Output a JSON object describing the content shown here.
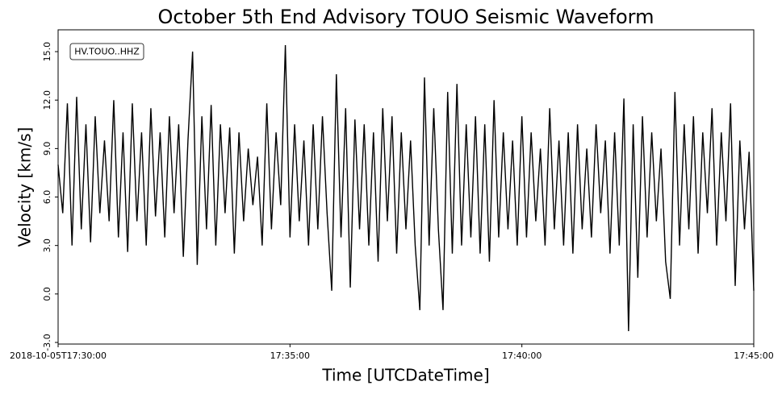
{
  "chart_data": {
    "type": "line",
    "title": "October 5th End Advisory TOUO Seismic Waveform",
    "xlabel": "Time [UTCDateTime]",
    "ylabel": "Velocity [km/s]",
    "x": [
      "2018-10-05T17:30:00",
      "2018-10-05T17:30:06",
      "2018-10-05T17:30:12",
      "2018-10-05T17:30:18",
      "2018-10-05T17:30:24",
      "2018-10-05T17:30:30",
      "2018-10-05T17:30:36",
      "2018-10-05T17:30:42",
      "2018-10-05T17:30:48",
      "2018-10-05T17:30:54",
      "2018-10-05T17:31:00",
      "2018-10-05T17:31:06",
      "2018-10-05T17:31:12",
      "2018-10-05T17:31:18",
      "2018-10-05T17:31:24",
      "2018-10-05T17:31:30",
      "2018-10-05T17:31:36",
      "2018-10-05T17:31:42",
      "2018-10-05T17:31:48",
      "2018-10-05T17:31:54",
      "2018-10-05T17:32:00",
      "2018-10-05T17:32:06",
      "2018-10-05T17:32:12",
      "2018-10-05T17:32:18",
      "2018-10-05T17:32:24",
      "2018-10-05T17:32:30",
      "2018-10-05T17:32:36",
      "2018-10-05T17:32:42",
      "2018-10-05T17:32:48",
      "2018-10-05T17:32:54",
      "2018-10-05T17:33:00",
      "2018-10-05T17:33:06",
      "2018-10-05T17:33:12",
      "2018-10-05T17:33:18",
      "2018-10-05T17:33:24",
      "2018-10-05T17:33:30",
      "2018-10-05T17:33:36",
      "2018-10-05T17:33:42",
      "2018-10-05T17:33:48",
      "2018-10-05T17:33:54",
      "2018-10-05T17:34:00",
      "2018-10-05T17:34:06",
      "2018-10-05T17:34:12",
      "2018-10-05T17:34:18",
      "2018-10-05T17:34:24",
      "2018-10-05T17:34:30",
      "2018-10-05T17:34:36",
      "2018-10-05T17:34:42",
      "2018-10-05T17:34:48",
      "2018-10-05T17:34:54",
      "2018-10-05T17:35:00",
      "2018-10-05T17:35:06",
      "2018-10-05T17:35:12",
      "2018-10-05T17:35:18",
      "2018-10-05T17:35:24",
      "2018-10-05T17:35:30",
      "2018-10-05T17:35:36",
      "2018-10-05T17:35:42",
      "2018-10-05T17:35:48",
      "2018-10-05T17:35:54",
      "2018-10-05T17:36:00",
      "2018-10-05T17:36:06",
      "2018-10-05T17:36:12",
      "2018-10-05T17:36:18",
      "2018-10-05T17:36:24",
      "2018-10-05T17:36:30",
      "2018-10-05T17:36:36",
      "2018-10-05T17:36:42",
      "2018-10-05T17:36:48",
      "2018-10-05T17:36:54",
      "2018-10-05T17:37:00",
      "2018-10-05T17:37:06",
      "2018-10-05T17:37:12",
      "2018-10-05T17:37:18",
      "2018-10-05T17:37:24",
      "2018-10-05T17:37:30",
      "2018-10-05T17:37:36",
      "2018-10-05T17:37:42",
      "2018-10-05T17:37:48",
      "2018-10-05T17:37:54",
      "2018-10-05T17:38:00",
      "2018-10-05T17:38:06",
      "2018-10-05T17:38:12",
      "2018-10-05T17:38:18",
      "2018-10-05T17:38:24",
      "2018-10-05T17:38:30",
      "2018-10-05T17:38:36",
      "2018-10-05T17:38:42",
      "2018-10-05T17:38:48",
      "2018-10-05T17:38:54",
      "2018-10-05T17:39:00",
      "2018-10-05T17:39:06",
      "2018-10-05T17:39:12",
      "2018-10-05T17:39:18",
      "2018-10-05T17:39:24",
      "2018-10-05T17:39:30",
      "2018-10-05T17:39:36",
      "2018-10-05T17:39:42",
      "2018-10-05T17:39:48",
      "2018-10-05T17:39:54",
      "2018-10-05T17:40:00",
      "2018-10-05T17:40:06",
      "2018-10-05T17:40:12",
      "2018-10-05T17:40:18",
      "2018-10-05T17:40:24",
      "2018-10-05T17:40:30",
      "2018-10-05T17:40:36",
      "2018-10-05T17:40:42",
      "2018-10-05T17:40:48",
      "2018-10-05T17:40:54",
      "2018-10-05T17:41:00",
      "2018-10-05T17:41:06",
      "2018-10-05T17:41:12",
      "2018-10-05T17:41:18",
      "2018-10-05T17:41:24",
      "2018-10-05T17:41:30",
      "2018-10-05T17:41:36",
      "2018-10-05T17:41:42",
      "2018-10-05T17:41:48",
      "2018-10-05T17:41:54",
      "2018-10-05T17:42:00",
      "2018-10-05T17:42:06",
      "2018-10-05T17:42:12",
      "2018-10-05T17:42:18",
      "2018-10-05T17:42:24",
      "2018-10-05T17:42:30",
      "2018-10-05T17:42:36",
      "2018-10-05T17:42:42",
      "2018-10-05T17:42:48",
      "2018-10-05T17:42:54",
      "2018-10-05T17:43:00",
      "2018-10-05T17:43:06",
      "2018-10-05T17:43:12",
      "2018-10-05T17:43:18",
      "2018-10-05T17:43:24",
      "2018-10-05T17:43:30",
      "2018-10-05T17:43:36",
      "2018-10-05T17:43:42",
      "2018-10-05T17:43:48",
      "2018-10-05T17:43:54",
      "2018-10-05T17:44:00",
      "2018-10-05T17:44:06",
      "2018-10-05T17:44:12",
      "2018-10-05T17:44:18",
      "2018-10-05T17:44:24",
      "2018-10-05T17:44:30",
      "2018-10-05T17:44:36",
      "2018-10-05T17:44:42",
      "2018-10-05T17:44:48",
      "2018-10-05T17:44:54",
      "2018-10-05T17:45:00"
    ],
    "series": [
      {
        "name": "HV.TOUO..HHZ",
        "color": "#000000",
        "values": [
          8.0,
          5.0,
          11.8,
          3.0,
          12.2,
          4.0,
          10.5,
          3.2,
          11.0,
          5.0,
          9.5,
          4.5,
          12.0,
          3.5,
          10.0,
          2.6,
          11.8,
          4.5,
          10.0,
          3.0,
          11.5,
          4.8,
          10.0,
          3.5,
          11.0,
          5.0,
          10.5,
          2.3,
          9.5,
          15.0,
          1.8,
          11.0,
          4.0,
          11.7,
          3.0,
          10.5,
          5.0,
          10.3,
          2.5,
          10.0,
          4.5,
          9.0,
          5.5,
          8.5,
          3.0,
          11.8,
          4.0,
          10.0,
          5.5,
          15.4,
          3.5,
          10.5,
          4.5,
          9.5,
          3.0,
          10.5,
          4.0,
          11.0,
          5.0,
          0.2,
          13.6,
          3.5,
          11.5,
          0.4,
          10.8,
          4.0,
          10.5,
          3.0,
          10.0,
          2.0,
          11.5,
          4.5,
          11.0,
          2.5,
          10.0,
          4.0,
          9.5,
          3.0,
          -1.0,
          13.4,
          3.0,
          11.5,
          4.0,
          -1.0,
          12.5,
          2.5,
          13.0,
          3.0,
          10.5,
          3.5,
          11.0,
          2.5,
          10.5,
          2.0,
          12.0,
          3.5,
          10.0,
          4.0,
          9.5,
          3.0,
          11.0,
          3.5,
          10.0,
          4.5,
          9.0,
          3.0,
          11.5,
          4.0,
          9.5,
          3.0,
          10.0,
          2.5,
          10.5,
          4.0,
          9.0,
          3.5,
          10.5,
          5.0,
          9.5,
          2.5,
          10.0,
          3.0,
          12.1,
          -2.3,
          10.5,
          1.0,
          11.0,
          3.5,
          10.0,
          4.5,
          9.0,
          2.0,
          -0.3,
          12.5,
          3.0,
          10.5,
          4.0,
          11.0,
          2.5,
          10.0,
          5.0,
          11.5,
          3.0,
          10.0,
          4.5,
          11.8,
          0.5,
          9.5,
          4.0,
          8.8,
          0.2
        ]
      }
    ],
    "xlim": [
      "2018-10-05T17:30:00",
      "2018-10-05T17:45:00"
    ],
    "xticks": [
      "2018-10-05T17:30:00",
      {
        "value": "2018-10-05T17:35:00",
        "label": "17:35:00"
      },
      {
        "value": "2018-10-05T17:40:00",
        "label": "17:40:00"
      },
      {
        "value": "2018-10-05T17:45:00",
        "label": "17:45:00"
      }
    ],
    "ylim": [
      -3.1,
      16.35
    ],
    "yticks": [
      {
        "value": -3,
        "label": "-3.0"
      },
      {
        "value": 0,
        "label": "0.0"
      },
      {
        "value": 3,
        "label": "3.0"
      },
      {
        "value": 6,
        "label": "6.0"
      },
      {
        "value": 9,
        "label": "9.0"
      },
      {
        "value": 12,
        "label": "12.0"
      },
      {
        "value": 15,
        "label": "15.0"
      }
    ],
    "grid": false,
    "legend": "upper left"
  }
}
